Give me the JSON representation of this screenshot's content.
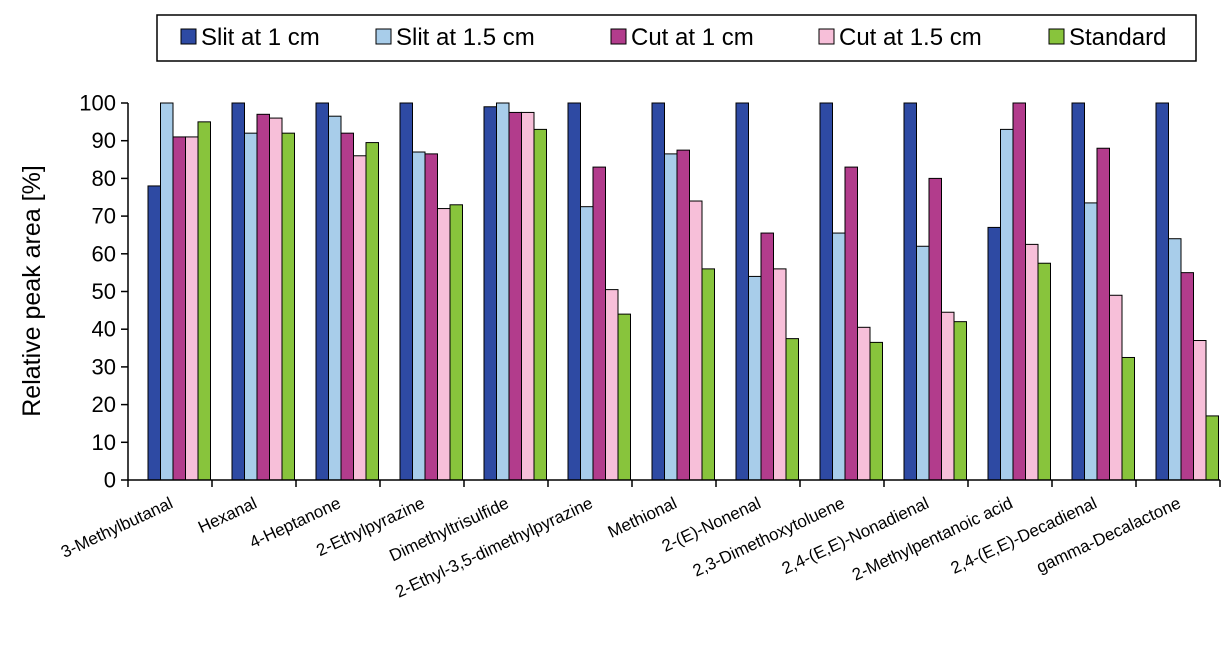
{
  "chart_data": {
    "type": "bar",
    "title": "",
    "xlabel": "",
    "ylabel": "Relative peak area [%]",
    "ylim": [
      0,
      100
    ],
    "yticks": [
      0,
      10,
      20,
      30,
      40,
      50,
      60,
      70,
      80,
      90,
      100
    ],
    "grid": false,
    "legend_position": "top",
    "categories": [
      "3-Methylbutanal",
      "Hexanal",
      "4-Heptanone",
      "2-Ethylpyrazine",
      "Dimethyltrisulfide",
      "2-Ethyl-3,5-dimethylpyrazine",
      "Methional",
      "2-(E)-Nonenal",
      "2,3-Dimethoxytoluene",
      "2,4-(E,E)-Nonadienal",
      "2-Methylpentanoic acid",
      "2,4-(E,E)-Decadienal",
      "gamma-Decalactone"
    ],
    "series": [
      {
        "name": "Slit at 1 cm",
        "color": "#2e4aa3",
        "values": [
          78,
          100,
          100,
          100,
          99,
          100,
          100,
          100,
          100,
          100,
          67,
          100,
          100
        ]
      },
      {
        "name": "Slit at 1.5 cm",
        "color": "#a8cdea",
        "values": [
          100,
          92,
          96.5,
          87,
          100,
          72.5,
          86.5,
          54,
          65.5,
          62,
          93,
          73.5,
          64
        ]
      },
      {
        "name": "Cut at 1 cm",
        "color": "#b23c8c",
        "values": [
          91,
          97,
          92,
          86.5,
          97.5,
          83,
          87.5,
          65.5,
          83,
          80,
          100,
          88,
          55
        ]
      },
      {
        "name": "Cut at 1.5 cm",
        "color": "#f7bfd9",
        "values": [
          91,
          96,
          86,
          72,
          97.5,
          50.5,
          74,
          56,
          40.5,
          44.5,
          62.5,
          49,
          37
        ]
      },
      {
        "name": "Standard",
        "color": "#88c43c",
        "values": [
          95,
          92,
          89.5,
          73,
          93,
          44,
          56,
          37.5,
          36.5,
          42,
          57.5,
          32.5,
          17
        ]
      }
    ]
  }
}
